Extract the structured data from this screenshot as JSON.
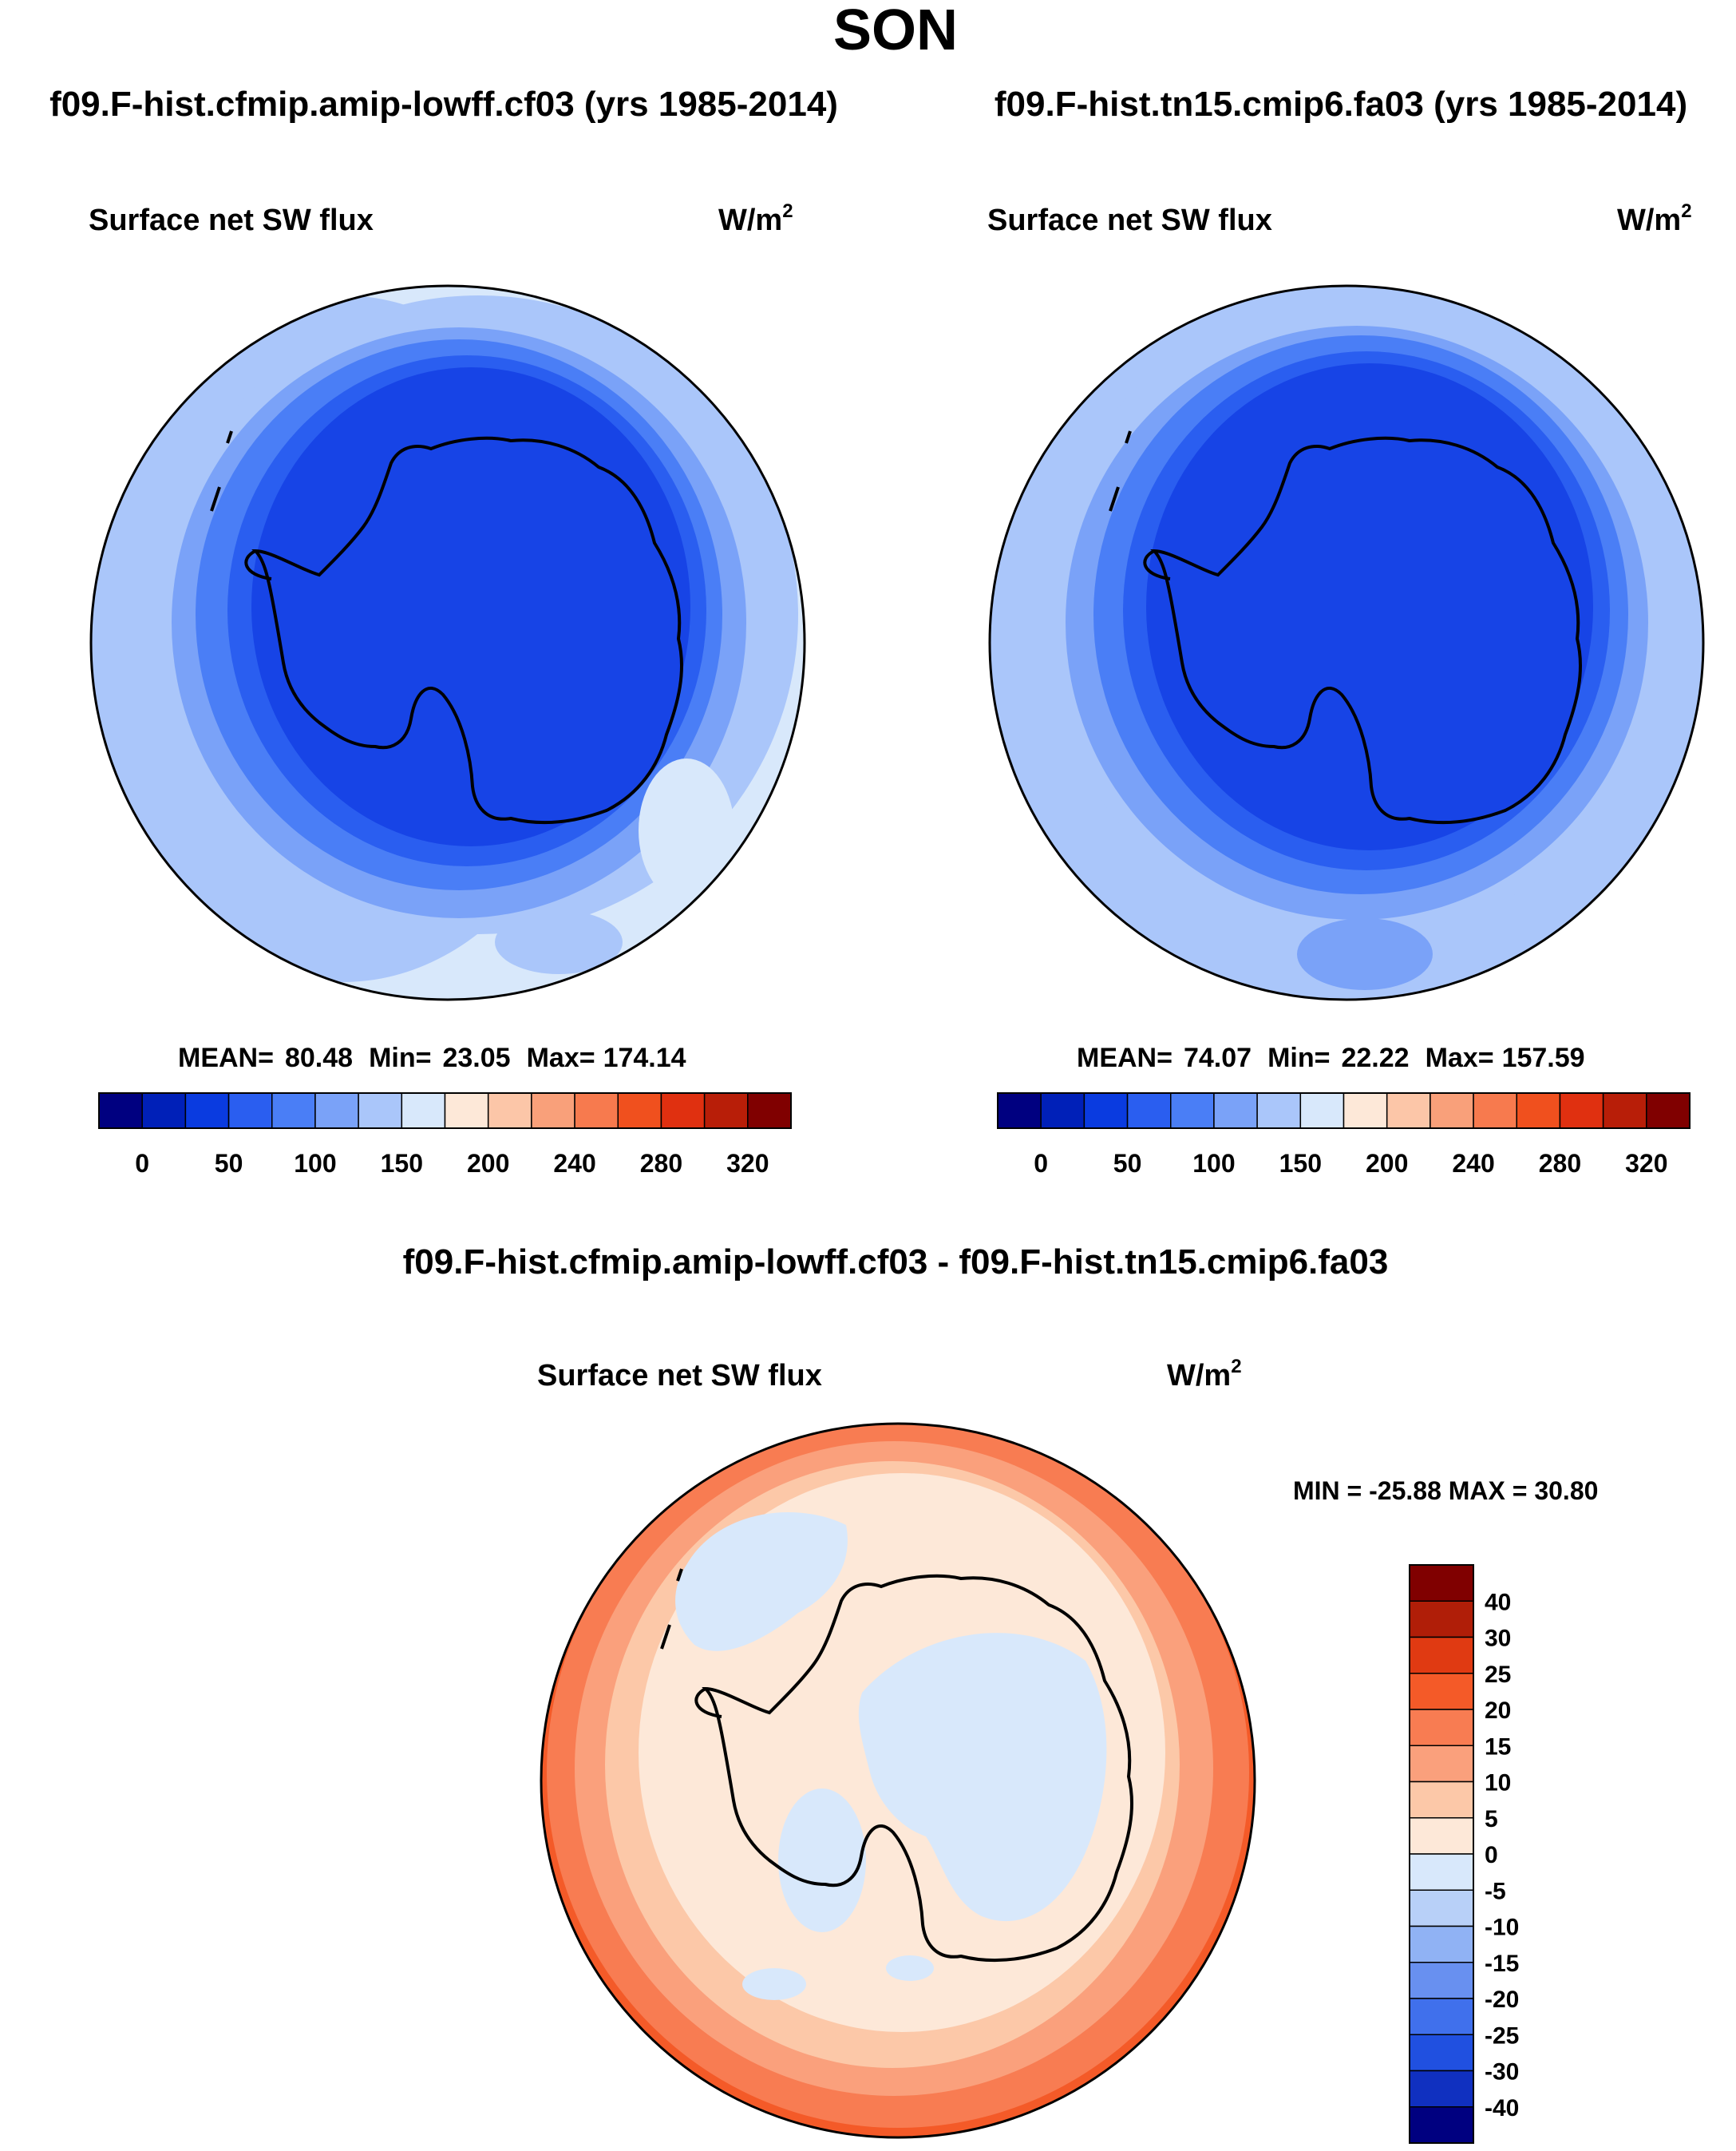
{
  "figure": {
    "season": "SON",
    "panels": [
      {
        "id": "left",
        "case_title": "f09.F-hist.cfmip.amip-lowff.cf03 (yrs 1985-2014)",
        "variable": "Surface net SW flux",
        "units_base": "W/m",
        "units_exp": "2",
        "stats": {
          "mean_label": "MEAN=",
          "mean": "80.48",
          "min_label": "Min=",
          "min": "23.05",
          "max_label": "Max=",
          "max": "174.14"
        },
        "field_levels": [
          "80-150 outer ring",
          "50-80 band",
          "0-50 interior"
        ]
      },
      {
        "id": "right",
        "case_title": "f09.F-hist.tn15.cmip6.fa03 (yrs 1985-2014)",
        "variable": "Surface net SW flux",
        "units_base": "W/m",
        "units_exp": "2",
        "stats": {
          "mean_label": "MEAN=",
          "mean": "74.07",
          "min_label": "Min=",
          "min": "22.22",
          "max_label": "Max=",
          "max": "157.59"
        },
        "field_levels": [
          "75-125 outer ring",
          "50-75 band",
          "0-50 interior"
        ]
      }
    ],
    "abs_colorbar": {
      "colors": [
        "#000080",
        "#0020b8",
        "#0a3be0",
        "#2a5ef0",
        "#4a7ef6",
        "#7aa2f8",
        "#aac6fa",
        "#d8e8fb",
        "#fde8d8",
        "#fcc6a8",
        "#f9a07a",
        "#f77a4e",
        "#f0501e",
        "#e03010",
        "#b81e08",
        "#800000"
      ],
      "tick_labels": [
        "0",
        "50",
        "100",
        "150",
        "200",
        "240",
        "280",
        "320"
      ]
    },
    "diff": {
      "title": "f09.F-hist.cfmip.amip-lowff.cf03 - f09.F-hist.tn15.cmip6.fa03",
      "variable": "Surface net SW flux",
      "units_base": "W/m",
      "units_exp": "2",
      "minmax_text": "MIN = -25.88 MAX =  30.80",
      "colorbar": {
        "colors_top_to_bottom": [
          "#800000",
          "#b01e08",
          "#e03a12",
          "#f45a28",
          "#f87c52",
          "#faa07c",
          "#fcc8a8",
          "#fde8d8",
          "#d8e8fb",
          "#b8d0f8",
          "#90b2f4",
          "#6890f0",
          "#4070ec",
          "#2050e0",
          "#1030c0",
          "#000080"
        ],
        "labels_top_to_bottom": [
          "40",
          "30",
          "25",
          "20",
          "15",
          "10",
          "5",
          "0",
          "-5",
          "-10",
          "-15",
          "-20",
          "-25",
          "-30",
          "-40"
        ]
      }
    }
  }
}
